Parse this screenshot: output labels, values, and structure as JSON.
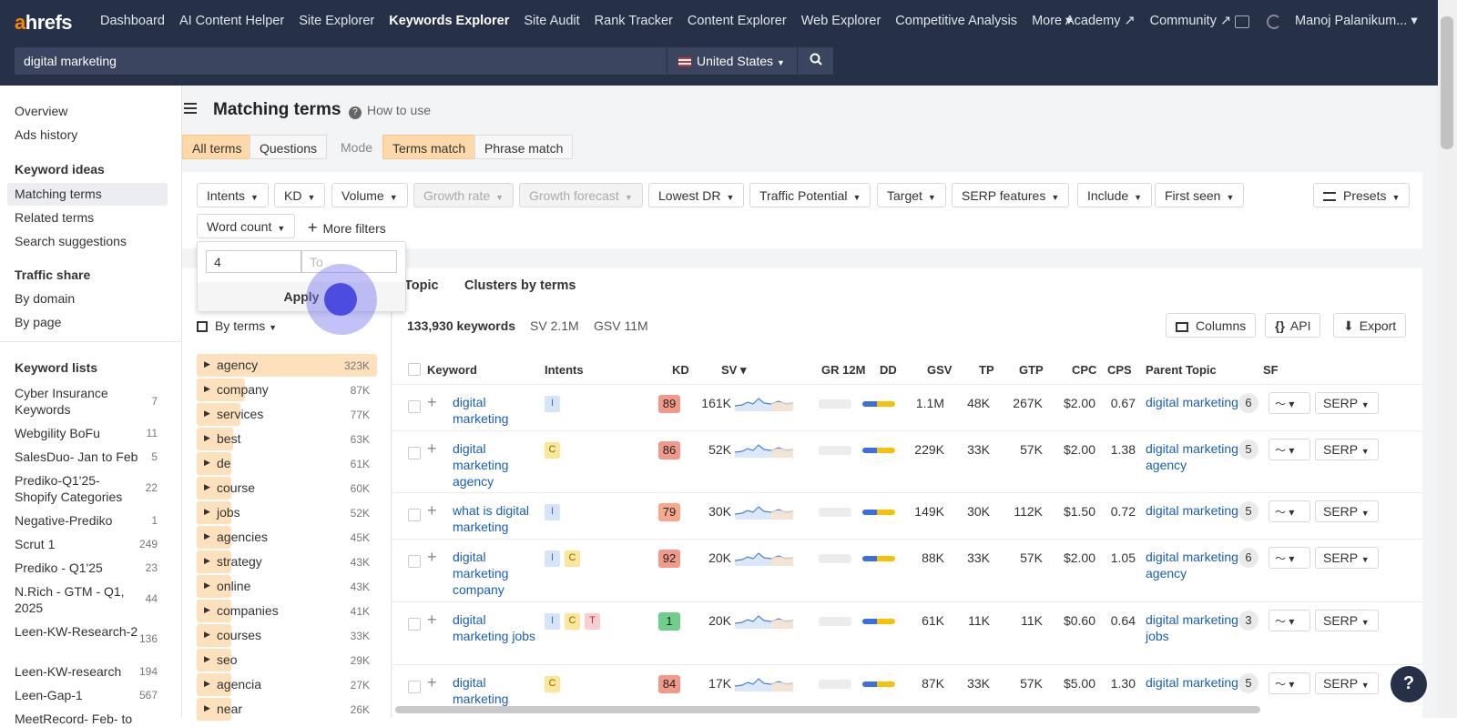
{
  "topbar": {
    "logo": "ahrefs",
    "nav": [
      "Dashboard",
      "AI Content Helper",
      "Site Explorer",
      "Keywords Explorer",
      "Site Audit",
      "Rank Tracker",
      "Content Explorer",
      "Web Explorer",
      "Competitive Analysis",
      "More ▾"
    ],
    "active_index": 3,
    "academy": "Academy ↗",
    "community": "Community ↗",
    "user": "Manoj Palanikum... ▾"
  },
  "search": {
    "value": "digital marketing",
    "country": "United States"
  },
  "sidebar": {
    "overview": "Overview",
    "ads_history": "Ads history",
    "keyword_ideas": "Keyword ideas",
    "matching_terms": "Matching terms",
    "related_terms": "Related terms",
    "search_suggestions": "Search suggestions",
    "traffic_share": "Traffic share",
    "by_domain": "By domain",
    "by_page": "By page",
    "keyword_lists": "Keyword lists",
    "lists": [
      {
        "name": "Cyber Insurance Keywords",
        "count": "7"
      },
      {
        "name": "Webgility BoFu",
        "count": "11"
      },
      {
        "name": "SalesDuo- Jan to Feb",
        "count": "5"
      },
      {
        "name": "Prediko-Q1'25-Shopify Categories",
        "count": "22"
      },
      {
        "name": "Negative-Prediko",
        "count": "1"
      },
      {
        "name": "Scrut 1",
        "count": "249"
      },
      {
        "name": "Prediko - Q1'25",
        "count": "23"
      },
      {
        "name": "N.Rich - GTM - Q1, 2025",
        "count": "44"
      },
      {
        "name": "Leen-KW-Research-2",
        "count": "136"
      },
      {
        "name": "Leen-KW-research",
        "count": "194"
      },
      {
        "name": "Leen-Gap-1",
        "count": "567"
      },
      {
        "name": "MeetRecord- Feb- to",
        "count": ""
      }
    ]
  },
  "header": {
    "title": "Matching terms",
    "how_to_use": "How to use"
  },
  "segments": {
    "all_terms": "All terms",
    "questions": "Questions",
    "mode": "Mode",
    "terms_match": "Terms match",
    "phrase_match": "Phrase match"
  },
  "filters": {
    "intents": "Intents",
    "kd": "KD",
    "volume": "Volume",
    "growth_rate": "Growth rate",
    "growth_forecast": "Growth forecast",
    "lowest_dr": "Lowest DR",
    "traffic_potential": "Traffic Potential",
    "target": "Target",
    "serp_features": "SERP features",
    "include": "Include",
    "first_seen": "First seen",
    "presets": "Presets",
    "word_count": "Word count",
    "more_filters": "More filters"
  },
  "wordcount_popup": {
    "from": "4",
    "to_placeholder": "To",
    "apply": "Apply"
  },
  "tabs": {
    "topic": "Topic",
    "clusters": "Clusters by terms"
  },
  "by_terms": "By terms",
  "terms": [
    {
      "label": "agency",
      "count": "323K",
      "fill": 1.0
    },
    {
      "label": "company",
      "count": "87K",
      "fill": 0.27
    },
    {
      "label": "services",
      "count": "77K",
      "fill": 0.24
    },
    {
      "label": "best",
      "count": "63K",
      "fill": 0.2
    },
    {
      "label": "de",
      "count": "61K",
      "fill": 0.19
    },
    {
      "label": "course",
      "count": "60K",
      "fill": 0.19
    },
    {
      "label": "jobs",
      "count": "52K",
      "fill": 0.16
    },
    {
      "label": "agencies",
      "count": "45K",
      "fill": 0.14
    },
    {
      "label": "strategy",
      "count": "43K",
      "fill": 0.13
    },
    {
      "label": "online",
      "count": "43K",
      "fill": 0.13
    },
    {
      "label": "companies",
      "count": "41K",
      "fill": 0.13
    },
    {
      "label": "courses",
      "count": "33K",
      "fill": 0.1
    },
    {
      "label": "seo",
      "count": "29K",
      "fill": 0.09
    },
    {
      "label": "agencia",
      "count": "27K",
      "fill": 0.08
    },
    {
      "label": "near",
      "count": "26K",
      "fill": 0.08
    }
  ],
  "summary": {
    "keywords": "133,930 keywords",
    "sv": "SV 2.1M",
    "gsv": "GSV 11M"
  },
  "toolbar": {
    "columns": "Columns",
    "api": "API",
    "export": "Export"
  },
  "columns": [
    "Keyword",
    "Intents",
    "KD",
    "SV ▾",
    "GR 12M",
    "DD",
    "GSV",
    "TP",
    "GTP",
    "CPC",
    "CPS",
    "Parent Topic",
    "SF"
  ],
  "rows": [
    {
      "keyword": "digital marketing",
      "intents": [
        "I"
      ],
      "kd": "89",
      "kd_color": "#f29a8a",
      "sv": "161K",
      "gsv": "1.1M",
      "tp": "48K",
      "gtp": "267K",
      "cpc": "$2.00",
      "cps": "0.67",
      "parent": "digital marketing",
      "sf": "6",
      "serp": "SERP"
    },
    {
      "keyword": "digital marketing agency",
      "intents": [
        "C"
      ],
      "kd": "86",
      "kd_color": "#f29a8a",
      "sv": "52K",
      "gsv": "229K",
      "tp": "33K",
      "gtp": "57K",
      "cpc": "$2.00",
      "cps": "1.38",
      "parent": "digital marketing agency",
      "sf": "5",
      "serp": "SERP"
    },
    {
      "keyword": "what is digital marketing",
      "intents": [
        "I"
      ],
      "kd": "79",
      "kd_color": "#f5a88a",
      "sv": "30K",
      "gsv": "149K",
      "tp": "30K",
      "gtp": "112K",
      "cpc": "$1.50",
      "cps": "0.72",
      "parent": "digital marketing",
      "sf": "5",
      "serp": "SERP"
    },
    {
      "keyword": "digital marketing company",
      "intents": [
        "I",
        "C"
      ],
      "kd": "92",
      "kd_color": "#f29a8a",
      "sv": "20K",
      "gsv": "88K",
      "tp": "33K",
      "gtp": "57K",
      "cpc": "$2.00",
      "cps": "1.05",
      "parent": "digital marketing agency",
      "sf": "6",
      "serp": "SERP"
    },
    {
      "keyword": "digital marketing jobs",
      "intents": [
        "I",
        "C",
        "T"
      ],
      "kd": "1",
      "kd_color": "#6fcf8a",
      "sv": "20K",
      "gsv": "61K",
      "tp": "11K",
      "gtp": "11K",
      "cpc": "$0.60",
      "cps": "0.64",
      "parent": "digital marketing jobs",
      "sf": "3",
      "serp": "SERP"
    },
    {
      "keyword": "digital marketing",
      "intents": [
        "C"
      ],
      "kd": "84",
      "kd_color": "#f29a8a",
      "sv": "17K",
      "gsv": "87K",
      "tp": "33K",
      "gtp": "57K",
      "cpc": "$5.00",
      "cps": "1.30",
      "parent": "digital marketing",
      "sf": "5",
      "serp": "SERP"
    }
  ],
  "help": "?"
}
